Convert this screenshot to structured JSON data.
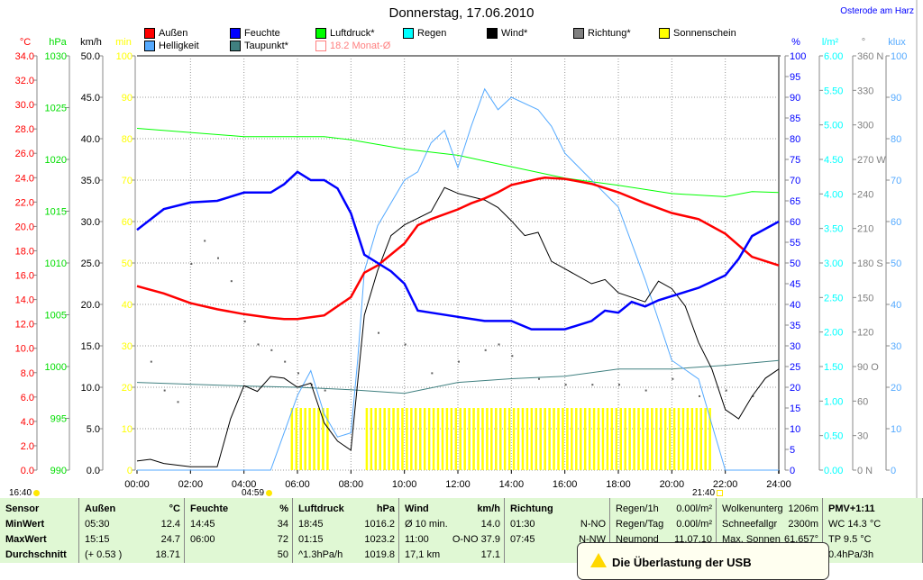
{
  "header": {
    "title": "Donnerstag, 17.06.2010",
    "location": "Osterode am Harz"
  },
  "legend": [
    {
      "label": "Außen",
      "color": "#ff0000"
    },
    {
      "label": "Feuchte",
      "color": "#0000ff"
    },
    {
      "label": "Luftdruck*",
      "color": "#00ff00"
    },
    {
      "label": "Regen",
      "color": "#00ffff"
    },
    {
      "label": "Wind*",
      "color": "#000000"
    },
    {
      "label": "Richtung*",
      "color": "#808080"
    },
    {
      "label": "Sonnenschein",
      "color": "#ffff00"
    },
    {
      "label": "Helligkeit",
      "color": "#55aaff"
    },
    {
      "label": "Taupunkt*",
      "color": "#408080"
    },
    {
      "label": "18.2 Monat-Ø",
      "color": "#ff8080"
    }
  ],
  "sun": {
    "sunset_prev": "16:40",
    "sunrise": "04:59",
    "sunset": "21:40"
  },
  "chart_data": {
    "type": "line",
    "title": "Donnerstag, 17.06.2010",
    "x_ticks": [
      "00:00",
      "02:00",
      "04:00",
      "06:00",
      "08:00",
      "10:00",
      "12:00",
      "14:00",
      "16:00",
      "18:00",
      "20:00",
      "22:00",
      "24:00"
    ],
    "xlim_hours": [
      0,
      24
    ],
    "grid": true,
    "axes": [
      {
        "id": "temp",
        "unit": "°C",
        "min": 0,
        "max": 34,
        "step": 2,
        "dec": 1,
        "color": "#ff0000",
        "side": "left"
      },
      {
        "id": "hpa",
        "unit": "hPa",
        "min": 990,
        "max": 1030,
        "step": 5,
        "dec": 0,
        "color": "#00dd00",
        "side": "left"
      },
      {
        "id": "wind",
        "unit": "km/h",
        "min": 0,
        "max": 50,
        "step": 5,
        "dec": 1,
        "color": "#000000",
        "side": "left"
      },
      {
        "id": "min",
        "unit": "min",
        "min": 0,
        "max": 100,
        "step": 10,
        "dec": 0,
        "color": "#ffff00",
        "side": "left"
      },
      {
        "id": "hum",
        "unit": "%",
        "min": 0,
        "max": 100,
        "step": 5,
        "dec": 0,
        "color": "#0000ff",
        "side": "right"
      },
      {
        "id": "rain",
        "unit": "l/m²",
        "min": 0,
        "max": 6,
        "step": 0.5,
        "dec": 2,
        "color": "#00ffff",
        "side": "right"
      },
      {
        "id": "dir",
        "unit": "°",
        "min": 0,
        "max": 360,
        "step": 30,
        "dec": 0,
        "color": "#808080",
        "side": "right",
        "compass": {
          "0": "N",
          "90": "O",
          "180": "S",
          "270": "W",
          "360": "N"
        }
      },
      {
        "id": "klux",
        "unit": "klux",
        "min": 0,
        "max": 100,
        "step": 10,
        "dec": 0,
        "color": "#55aaff",
        "side": "right"
      }
    ],
    "series": [
      {
        "name": "Luftdruck",
        "axis": "hpa",
        "color": "#00ff00",
        "width": 1,
        "x": [
          0,
          2,
          4,
          7,
          8,
          10,
          12,
          14,
          16,
          18,
          20,
          22,
          23,
          24
        ],
        "y": [
          1023.0,
          1022.6,
          1022.2,
          1022.2,
          1021.9,
          1021.0,
          1020.4,
          1019.3,
          1018.2,
          1017.5,
          1016.7,
          1016.4,
          1016.9,
          1016.8
        ]
      },
      {
        "name": "Taupunkt",
        "axis": "temp",
        "color": "#408080",
        "width": 1,
        "x": [
          0,
          4,
          6,
          8,
          10,
          12,
          14,
          16,
          18,
          20,
          22,
          24
        ],
        "y": [
          7.2,
          6.9,
          6.8,
          6.6,
          6.3,
          7.2,
          7.5,
          7.7,
          8.3,
          8.3,
          8.6,
          9.0
        ]
      },
      {
        "name": "Helligkeit",
        "axis": "klux",
        "color": "#55aaff",
        "width": 1,
        "x": [
          0,
          5,
          5.5,
          6,
          6.5,
          7,
          7.5,
          8,
          8.25,
          8.5,
          9,
          10,
          10.5,
          11,
          11.5,
          12,
          12.5,
          13,
          13.5,
          14,
          15,
          15.5,
          16,
          17,
          18,
          19,
          20,
          21,
          21.5,
          22,
          24
        ],
        "y": [
          0,
          0,
          9,
          18,
          24,
          13.5,
          8,
          9,
          26.5,
          48,
          59,
          70,
          72,
          79,
          82,
          73,
          83,
          92,
          87,
          90,
          87,
          83,
          76.5,
          70,
          63.5,
          46,
          26.5,
          22,
          11,
          0,
          0
        ]
      },
      {
        "name": "Wind",
        "axis": "wind",
        "color": "#000000",
        "width": 1,
        "x": [
          0,
          0.5,
          1,
          2,
          3,
          3.5,
          4,
          4.5,
          5,
          5.5,
          6,
          6.5,
          7,
          7.5,
          8,
          8.5,
          9,
          9.5,
          10,
          11,
          11.5,
          12,
          13,
          13.5,
          14,
          14.5,
          15,
          15.5,
          16,
          17,
          17.5,
          18,
          19,
          19.5,
          20,
          20.5,
          21,
          21.5,
          22,
          22.5,
          23,
          23.5,
          24
        ],
        "y": [
          1.1,
          1.3,
          0.8,
          0.4,
          0.4,
          6.2,
          10.2,
          9.5,
          11.3,
          11.1,
          10,
          10.5,
          5.7,
          3.5,
          2.4,
          18.7,
          24.1,
          28.3,
          29.6,
          31.2,
          34.1,
          33.4,
          32.6,
          31.7,
          30.1,
          28.3,
          28.7,
          25.2,
          24.3,
          22.5,
          23,
          21.4,
          20.3,
          22.8,
          21.9,
          19.8,
          15.4,
          12.2,
          7.3,
          6.2,
          8.9,
          11.1,
          12.2
        ]
      },
      {
        "name": "Außen",
        "axis": "temp",
        "color": "#ff0000",
        "width": 2.5,
        "x": [
          0,
          1,
          2,
          3,
          4,
          5,
          5.5,
          6,
          7,
          8,
          8.5,
          9,
          10,
          10.5,
          11,
          12,
          12.5,
          13,
          13.5,
          14,
          15,
          15.25,
          16,
          17,
          18,
          19,
          20,
          21,
          22,
          23,
          24
        ],
        "y": [
          15.1,
          14.5,
          13.7,
          13.2,
          12.8,
          12.5,
          12.4,
          12.4,
          12.7,
          14.2,
          16.2,
          16.8,
          18.6,
          20.1,
          20.6,
          21.4,
          21.9,
          22.3,
          22.8,
          23.4,
          23.9,
          24.0,
          23.9,
          23.5,
          22.8,
          21.9,
          21.1,
          20.6,
          19.4,
          17.5,
          16.8
        ]
      },
      {
        "name": "Feuchte",
        "axis": "hum",
        "color": "#0000ff",
        "width": 2.5,
        "x": [
          0,
          1,
          2,
          3,
          4,
          5,
          5.5,
          6,
          6.5,
          7,
          7.5,
          8,
          8.5,
          9,
          9.5,
          10,
          10.5,
          11,
          12,
          13,
          14,
          14.75,
          15,
          16,
          17,
          17.5,
          18,
          18.5,
          19,
          19.5,
          20,
          21,
          22,
          22.5,
          23,
          24
        ],
        "y": [
          58,
          63,
          64.6,
          65,
          67,
          67,
          69,
          72,
          70,
          70,
          68,
          62,
          52,
          50,
          48,
          45,
          38.5,
          38,
          37,
          36,
          36,
          34,
          34,
          34,
          36,
          38.5,
          38,
          40.6,
          39.5,
          41,
          42,
          44,
          47,
          51,
          56.5,
          60
        ]
      }
    ],
    "richtung_dots": {
      "axis": "dir",
      "color": "#606060",
      "x": [
        0.5,
        1,
        1.5,
        2,
        2.5,
        3,
        3.5,
        4,
        4.5,
        5,
        5.5,
        6,
        6.5,
        7,
        9,
        10,
        11,
        12,
        13,
        13.5,
        14,
        15,
        16,
        17,
        18,
        19,
        20,
        21,
        22,
        23
      ],
      "y": [
        95,
        70,
        60,
        180,
        200,
        185,
        165,
        130,
        110,
        105,
        95,
        85,
        75,
        70,
        120,
        110,
        85,
        95,
        105,
        110,
        100,
        80,
        75,
        75,
        75,
        70,
        80,
        65,
        70,
        65
      ]
    },
    "sunshine": {
      "axis": "min",
      "color": "#ffff00",
      "value": 15,
      "interval_min": 10,
      "segments": [
        {
          "from": 5.75,
          "to": 7.1
        },
        {
          "from": 8.55,
          "to": 21.5
        }
      ]
    }
  },
  "table": {
    "columns": [
      {
        "head": [
          "Sensor",
          ""
        ],
        "rows": [
          [
            "MinWert",
            ""
          ],
          [
            "MaxWert",
            ""
          ],
          [
            "Durchschnitt",
            ""
          ]
        ]
      },
      {
        "head": [
          "Außen",
          "°C"
        ],
        "rows": [
          [
            "05:30",
            "12.4"
          ],
          [
            "15:15",
            "24.7"
          ],
          [
            "(+ 0.53 )",
            "18.71"
          ]
        ]
      },
      {
        "head": [
          "Feuchte",
          "%"
        ],
        "rows": [
          [
            "14:45",
            "34"
          ],
          [
            "06:00",
            "72"
          ],
          [
            "",
            "50"
          ]
        ]
      },
      {
        "head": [
          "Luftdruck",
          "hPa"
        ],
        "rows": [
          [
            "18:45",
            "1016.2"
          ],
          [
            "01:15",
            "1023.2"
          ],
          [
            "^1.3hPa/h",
            "1019.8"
          ]
        ]
      },
      {
        "head": [
          "Wind",
          "km/h"
        ],
        "rows": [
          [
            "Ø 10 min.",
            "14.0"
          ],
          [
            "11:00",
            "O-NO 37.9"
          ],
          [
            "17,1 km",
            "17.1"
          ]
        ]
      },
      {
        "head": [
          "Richtung",
          ""
        ],
        "rows": [
          [
            "01:30",
            "N-NO"
          ],
          [
            "07:45",
            "N-NW"
          ],
          [
            "",
            ""
          ]
        ]
      },
      {
        "head": [
          "Regen/1h",
          "0.00l/m²"
        ],
        "rows": [
          [
            "Regen/Tag",
            "0.00l/m²"
          ],
          [
            "Neumond",
            "11.07.10"
          ],
          [
            "",
            ""
          ]
        ]
      },
      {
        "head": [
          "Wolkenunterg",
          "1206m"
        ],
        "rows": [
          [
            "Schneefallgr",
            "2300m"
          ],
          [
            "Max. Sonnen",
            "61,657°"
          ],
          [
            "",
            ""
          ]
        ]
      },
      {
        "head": [
          "PMV+1:11",
          ""
        ],
        "rows": [
          [
            "WC 14.3 °C",
            ""
          ],
          [
            "TP 9.5 °C",
            ""
          ],
          [
            "0.4hPa/3h",
            ""
          ]
        ]
      }
    ]
  },
  "popup": {
    "text": "Die Überlastung der USB"
  }
}
